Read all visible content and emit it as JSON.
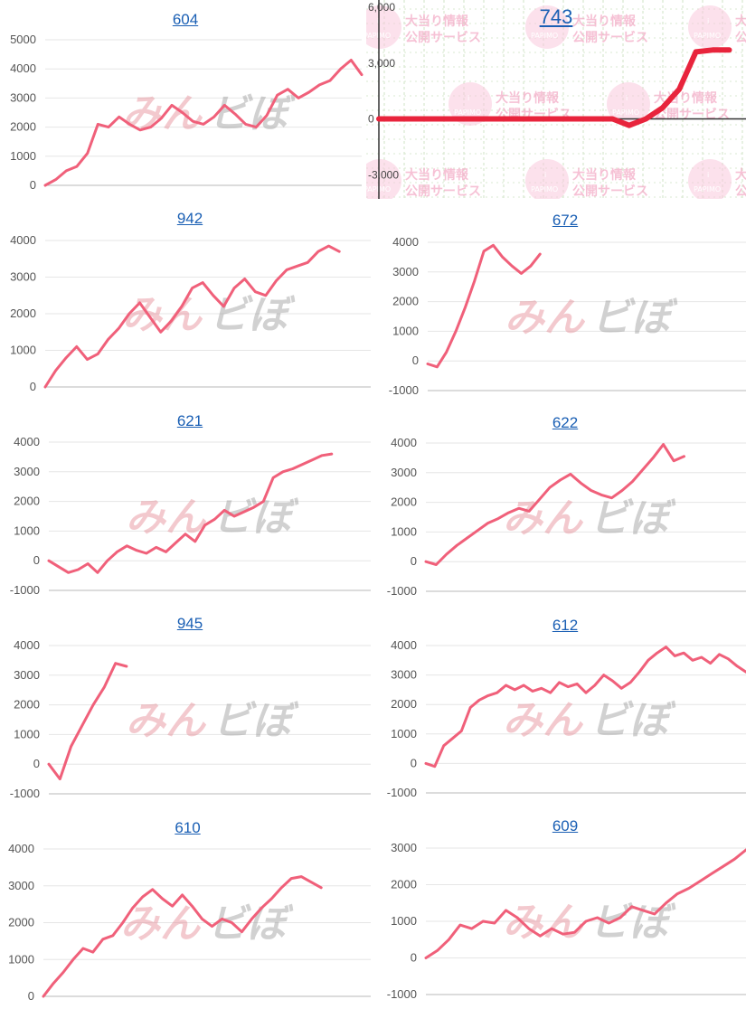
{
  "watermark": {
    "part1": "みん",
    "part2": "ぼ"
  },
  "panel_743": {
    "title": "743",
    "stamp_line1": "大当り情報",
    "stamp_line2": "公開サービス",
    "stamp_logo": "PAPIMO",
    "stamp_top": "i"
  },
  "chart_data": [
    {
      "id": "604",
      "type": "line",
      "title": "604",
      "ylim": [
        0,
        5000
      ],
      "yticks": [
        "0",
        "1000",
        "2000",
        "3000",
        "4000",
        "5000"
      ],
      "ytick_values": [
        0,
        1000,
        2000,
        3000,
        4000,
        5000
      ],
      "x": [
        0,
        1,
        2,
        3,
        4,
        5,
        6,
        7,
        8,
        9,
        10,
        11,
        12,
        13,
        14,
        15,
        16,
        17,
        18,
        19,
        20,
        21,
        22,
        23,
        24,
        25,
        26,
        27,
        28,
        29,
        30
      ],
      "y": [
        0,
        200,
        500,
        650,
        1100,
        2100,
        2000,
        2350,
        2100,
        1900,
        2000,
        2300,
        2750,
        2500,
        2200,
        2100,
        2350,
        2750,
        2450,
        2100,
        2000,
        2400,
        3100,
        3300,
        3000,
        3200,
        3450,
        3600,
        4000,
        4300,
        3800
      ]
    },
    {
      "id": "743",
      "type": "line",
      "title": "743",
      "ylim": [
        -3000,
        6000
      ],
      "yticks": [
        "-3,000",
        "0",
        "3,000",
        "6,000"
      ],
      "ytick_values": [
        -3000,
        0,
        3000,
        6000
      ],
      "x": [
        0,
        1,
        2,
        3,
        4,
        5,
        6,
        7,
        8,
        9,
        10,
        11,
        12,
        13,
        14,
        15,
        16,
        17,
        18,
        19,
        20,
        21
      ],
      "y": [
        0,
        0,
        0,
        0,
        0,
        0,
        0,
        0,
        0,
        0,
        0,
        0,
        0,
        0,
        0,
        -350,
        0,
        600,
        1600,
        3600,
        3700,
        3700
      ]
    },
    {
      "id": "942",
      "type": "line",
      "title": "942",
      "ylim": [
        0,
        4000
      ],
      "yticks": [
        "0",
        "1000",
        "2000",
        "3000",
        "4000"
      ],
      "ytick_values": [
        0,
        1000,
        2000,
        3000,
        4000
      ],
      "x": [
        0,
        1,
        2,
        3,
        4,
        5,
        6,
        7,
        8,
        9,
        10,
        11,
        12,
        13,
        14,
        15,
        16,
        17,
        18,
        19,
        20,
        21,
        22,
        23,
        24,
        25,
        26,
        27,
        28
      ],
      "y": [
        0,
        450,
        800,
        1100,
        750,
        900,
        1300,
        1600,
        2000,
        2300,
        1900,
        1500,
        1800,
        2200,
        2700,
        2850,
        2500,
        2200,
        2700,
        2950,
        2600,
        2500,
        2900,
        3200,
        3300,
        3400,
        3700,
        3850,
        3700
      ]
    },
    {
      "id": "672",
      "type": "line",
      "title": "672",
      "ylim": [
        -1000,
        4000
      ],
      "yticks": [
        "-1000",
        "0",
        "1000",
        "2000",
        "3000",
        "4000"
      ],
      "ytick_values": [
        -1000,
        0,
        1000,
        2000,
        3000,
        4000
      ],
      "x": [
        0,
        1,
        2,
        3,
        4,
        5,
        6,
        7,
        8,
        9,
        10,
        11,
        12
      ],
      "y": [
        -100,
        -200,
        300,
        1000,
        1800,
        2700,
        3700,
        3900,
        3500,
        3200,
        2950,
        3200,
        3600
      ]
    },
    {
      "id": "621",
      "type": "line",
      "title": "621",
      "ylim": [
        -1000,
        4000
      ],
      "yticks": [
        "-1000",
        "0",
        "1000",
        "2000",
        "3000",
        "4000"
      ],
      "ytick_values": [
        -1000,
        0,
        1000,
        2000,
        3000,
        4000
      ],
      "x": [
        0,
        1,
        2,
        3,
        4,
        5,
        6,
        7,
        8,
        9,
        10,
        11,
        12,
        13,
        14,
        15,
        16,
        17,
        18,
        19,
        20,
        21,
        22,
        23,
        24,
        25,
        26,
        27,
        28,
        29
      ],
      "y": [
        0,
        -200,
        -400,
        -300,
        -100,
        -400,
        0,
        300,
        500,
        350,
        250,
        450,
        300,
        600,
        900,
        650,
        1200,
        1400,
        1700,
        1500,
        1650,
        1800,
        2000,
        2800,
        3000,
        3100,
        3250,
        3400,
        3550,
        3600
      ]
    },
    {
      "id": "622",
      "type": "line",
      "title": "622",
      "ylim": [
        -1000,
        4000
      ],
      "yticks": [
        "-1000",
        "0",
        "1000",
        "2000",
        "3000",
        "4000"
      ],
      "ytick_values": [
        -1000,
        0,
        1000,
        2000,
        3000,
        4000
      ],
      "x": [
        0,
        1,
        2,
        3,
        4,
        5,
        6,
        7,
        8,
        9,
        10,
        11,
        12,
        13,
        14,
        15,
        16,
        17,
        18,
        19,
        20,
        21,
        22,
        23,
        24,
        25
      ],
      "y": [
        0,
        -100,
        250,
        550,
        800,
        1050,
        1300,
        1450,
        1650,
        1800,
        1700,
        2100,
        2500,
        2750,
        2950,
        2650,
        2400,
        2250,
        2150,
        2400,
        2700,
        3100,
        3500,
        3950,
        3400,
        3550
      ]
    },
    {
      "id": "945",
      "type": "line",
      "title": "945",
      "ylim": [
        -1000,
        4000
      ],
      "yticks": [
        "-1000",
        "0",
        "1000",
        "2000",
        "3000",
        "4000"
      ],
      "ytick_values": [
        -1000,
        0,
        1000,
        2000,
        3000,
        4000
      ],
      "x": [
        0,
        1,
        2,
        3,
        4,
        5,
        6,
        7
      ],
      "y": [
        0,
        -500,
        600,
        1300,
        2000,
        2600,
        3400,
        3300
      ]
    },
    {
      "id": "612",
      "type": "line",
      "title": "612",
      "ylim": [
        -1000,
        4000
      ],
      "yticks": [
        "-1000",
        "0",
        "1000",
        "2000",
        "3000",
        "4000"
      ],
      "ytick_values": [
        -1000,
        0,
        1000,
        2000,
        3000,
        4000
      ],
      "x": [
        0,
        1,
        2,
        3,
        4,
        5,
        6,
        7,
        8,
        9,
        10,
        11,
        12,
        13,
        14,
        15,
        16,
        17,
        18,
        19,
        20,
        21,
        22,
        23,
        24,
        25,
        26,
        27,
        28,
        29,
        30,
        31,
        32,
        33,
        34,
        35,
        36
      ],
      "y": [
        0,
        -100,
        600,
        850,
        1100,
        1900,
        2150,
        2300,
        2400,
        2650,
        2500,
        2650,
        2450,
        2550,
        2400,
        2750,
        2600,
        2700,
        2400,
        2650,
        3000,
        2800,
        2550,
        2750,
        3100,
        3500,
        3750,
        3950,
        3650,
        3750,
        3500,
        3600,
        3400,
        3700,
        3550,
        3300,
        3100
      ]
    },
    {
      "id": "610",
      "type": "line",
      "title": "610",
      "ylim": [
        0,
        4000
      ],
      "yticks": [
        "0",
        "1000",
        "2000",
        "3000",
        "4000"
      ],
      "ytick_values": [
        0,
        1000,
        2000,
        3000,
        4000
      ],
      "x": [
        0,
        1,
        2,
        3,
        4,
        5,
        6,
        7,
        8,
        9,
        10,
        11,
        12,
        13,
        14,
        15,
        16,
        17,
        18,
        19,
        20,
        21,
        22,
        23,
        24,
        25,
        26,
        27,
        28
      ],
      "y": [
        0,
        350,
        650,
        1000,
        1300,
        1200,
        1550,
        1650,
        2000,
        2400,
        2700,
        2900,
        2650,
        2450,
        2750,
        2450,
        2100,
        1900,
        2100,
        2000,
        1750,
        2100,
        2400,
        2650,
        2950,
        3200,
        3250,
        3100,
        2950
      ]
    },
    {
      "id": "609",
      "type": "line",
      "title": "609",
      "ylim": [
        -1000,
        3000
      ],
      "yticks": [
        "-1000",
        "0",
        "1000",
        "2000",
        "3000"
      ],
      "ytick_values": [
        -1000,
        0,
        1000,
        2000,
        3000
      ],
      "x": [
        0,
        1,
        2,
        3,
        4,
        5,
        6,
        7,
        8,
        9,
        10,
        11,
        12,
        13,
        14,
        15,
        16,
        17,
        18,
        19,
        20,
        21,
        22,
        23,
        24,
        25,
        26,
        27,
        28
      ],
      "y": [
        0,
        200,
        500,
        900,
        800,
        1000,
        950,
        1300,
        1100,
        800,
        600,
        800,
        650,
        700,
        1000,
        1100,
        950,
        1100,
        1400,
        1300,
        1200,
        1500,
        1750,
        1900,
        2100,
        2300,
        2500,
        2700,
        2950
      ]
    }
  ]
}
